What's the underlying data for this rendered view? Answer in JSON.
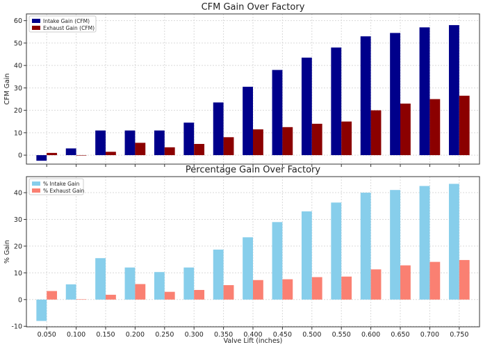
{
  "chart_data": [
    {
      "type": "bar",
      "title": "CFM Gain Over Factory",
      "xlabel": "",
      "ylabel": "CFM Gain",
      "categories": [
        "0.050",
        "0.100",
        "0.150",
        "0.200",
        "0.250",
        "0.300",
        "0.350",
        "0.400",
        "0.450",
        "0.500",
        "0.550",
        "0.600",
        "0.650",
        "0.700",
        "0.750"
      ],
      "series": [
        {
          "name": "Intake Gain (CFM)",
          "color": "#00008b",
          "values": [
            -2.5,
            3,
            11,
            11,
            11,
            14.5,
            23.5,
            30.5,
            38,
            43.5,
            48,
            53,
            54.5,
            57,
            58
          ]
        },
        {
          "name": "Exhaust Gain (CFM)",
          "color": "#8b0000",
          "values": [
            1,
            0,
            1.5,
            5.5,
            3.5,
            5,
            8,
            11.5,
            12.5,
            14,
            15,
            20,
            23,
            25,
            26.5
          ]
        }
      ],
      "ylim": [
        -4,
        63
      ],
      "yticks": [
        0,
        10,
        20,
        30,
        40,
        50,
        60
      ],
      "show_x_tick_labels": false,
      "grid": true,
      "legend": "top-left"
    },
    {
      "type": "bar",
      "title": "Percentage Gain Over Factory",
      "xlabel": "Valve Lift (inches)",
      "ylabel": "% Gain",
      "categories": [
        "0.050",
        "0.100",
        "0.150",
        "0.200",
        "0.250",
        "0.300",
        "0.350",
        "0.400",
        "0.450",
        "0.500",
        "0.550",
        "0.600",
        "0.650",
        "0.700",
        "0.750"
      ],
      "series": [
        {
          "name": "% Intake Gain",
          "color": "#87ceeb",
          "values": [
            -8,
            5.7,
            15.5,
            12,
            10.3,
            12,
            18.7,
            23.3,
            29,
            33,
            36.3,
            40,
            41,
            42.5,
            43.3
          ]
        },
        {
          "name": "% Exhaust Gain",
          "color": "#fa8072",
          "values": [
            3.2,
            0.1,
            1.8,
            5.8,
            2.9,
            3.6,
            5.4,
            7.3,
            7.6,
            8.4,
            8.6,
            11.3,
            12.8,
            14.1,
            14.8
          ]
        }
      ],
      "ylim": [
        -10.2,
        46
      ],
      "yticks": [
        -10,
        0,
        10,
        20,
        30,
        40
      ],
      "show_x_tick_labels": true,
      "grid": true,
      "legend": "top-left"
    }
  ]
}
